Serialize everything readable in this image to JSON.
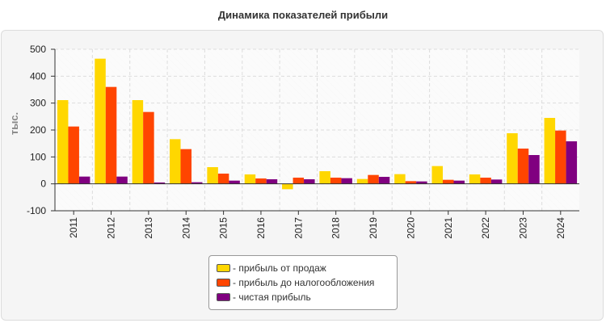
{
  "chart_data": {
    "type": "bar",
    "title": "Динамика показателей прибыли",
    "ylabel": "тыс.",
    "xlabel": "",
    "ylim": [
      -100,
      500
    ],
    "yticks": [
      -100,
      0,
      100,
      200,
      300,
      400,
      500
    ],
    "grid": true,
    "legend_position": "bottom",
    "categories": [
      "2011",
      "2012",
      "2013",
      "2014",
      "2015",
      "2016",
      "2017",
      "2018",
      "2019",
      "2020",
      "2021",
      "2022",
      "2023",
      "2024"
    ],
    "series": [
      {
        "name": "прибыль от продаж",
        "color": "#ffd700",
        "values": [
          311,
          465,
          311,
          166,
          62,
          35,
          -20,
          47,
          18,
          36,
          66,
          35,
          188,
          245
        ]
      },
      {
        "name": "прибыль до налогообложения",
        "color": "#ff4500",
        "values": [
          213,
          360,
          267,
          129,
          38,
          20,
          23,
          23,
          33,
          10,
          15,
          23,
          131,
          198
        ]
      },
      {
        "name": "чистая прибыль",
        "color": "#800080",
        "values": [
          27,
          27,
          5,
          6,
          12,
          17,
          17,
          21,
          26,
          9,
          12,
          16,
          107,
          158
        ]
      }
    ]
  }
}
